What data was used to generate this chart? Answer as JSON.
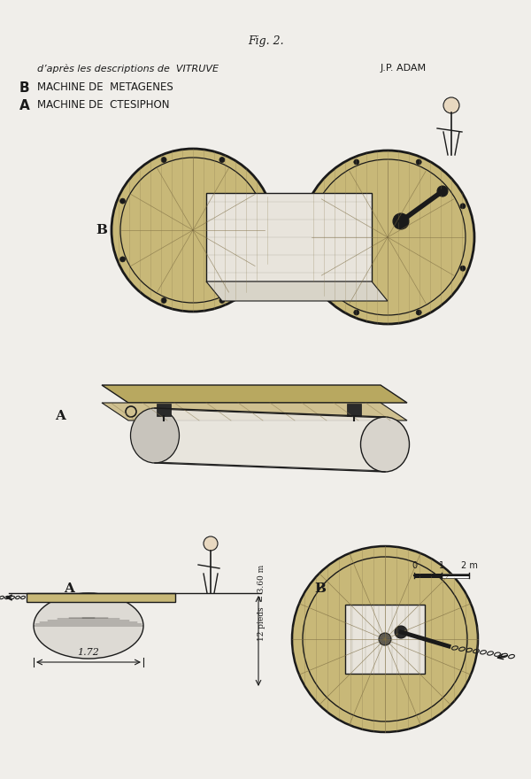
{
  "bg_color": "#f0eeea",
  "line_color": "#1a1a1a",
  "title": "Fig. 2.",
  "label_A1": "A",
  "label_B1": "B",
  "label_A2": "A",
  "label_B2": "B",
  "legend_A": "MACHINE DE  CTESIPHON",
  "legend_B": "MACHINE DE  METAGENES",
  "legend_sub": "d’après les descriptions de  VITRUVE",
  "legend_right": "J.P. ADAM",
  "dim_172": "1.72",
  "dim_12pieds": "12 pieds  ≃ 3.60 m",
  "scale_0": "0",
  "scale_1": "1",
  "scale_2m": "2 m"
}
